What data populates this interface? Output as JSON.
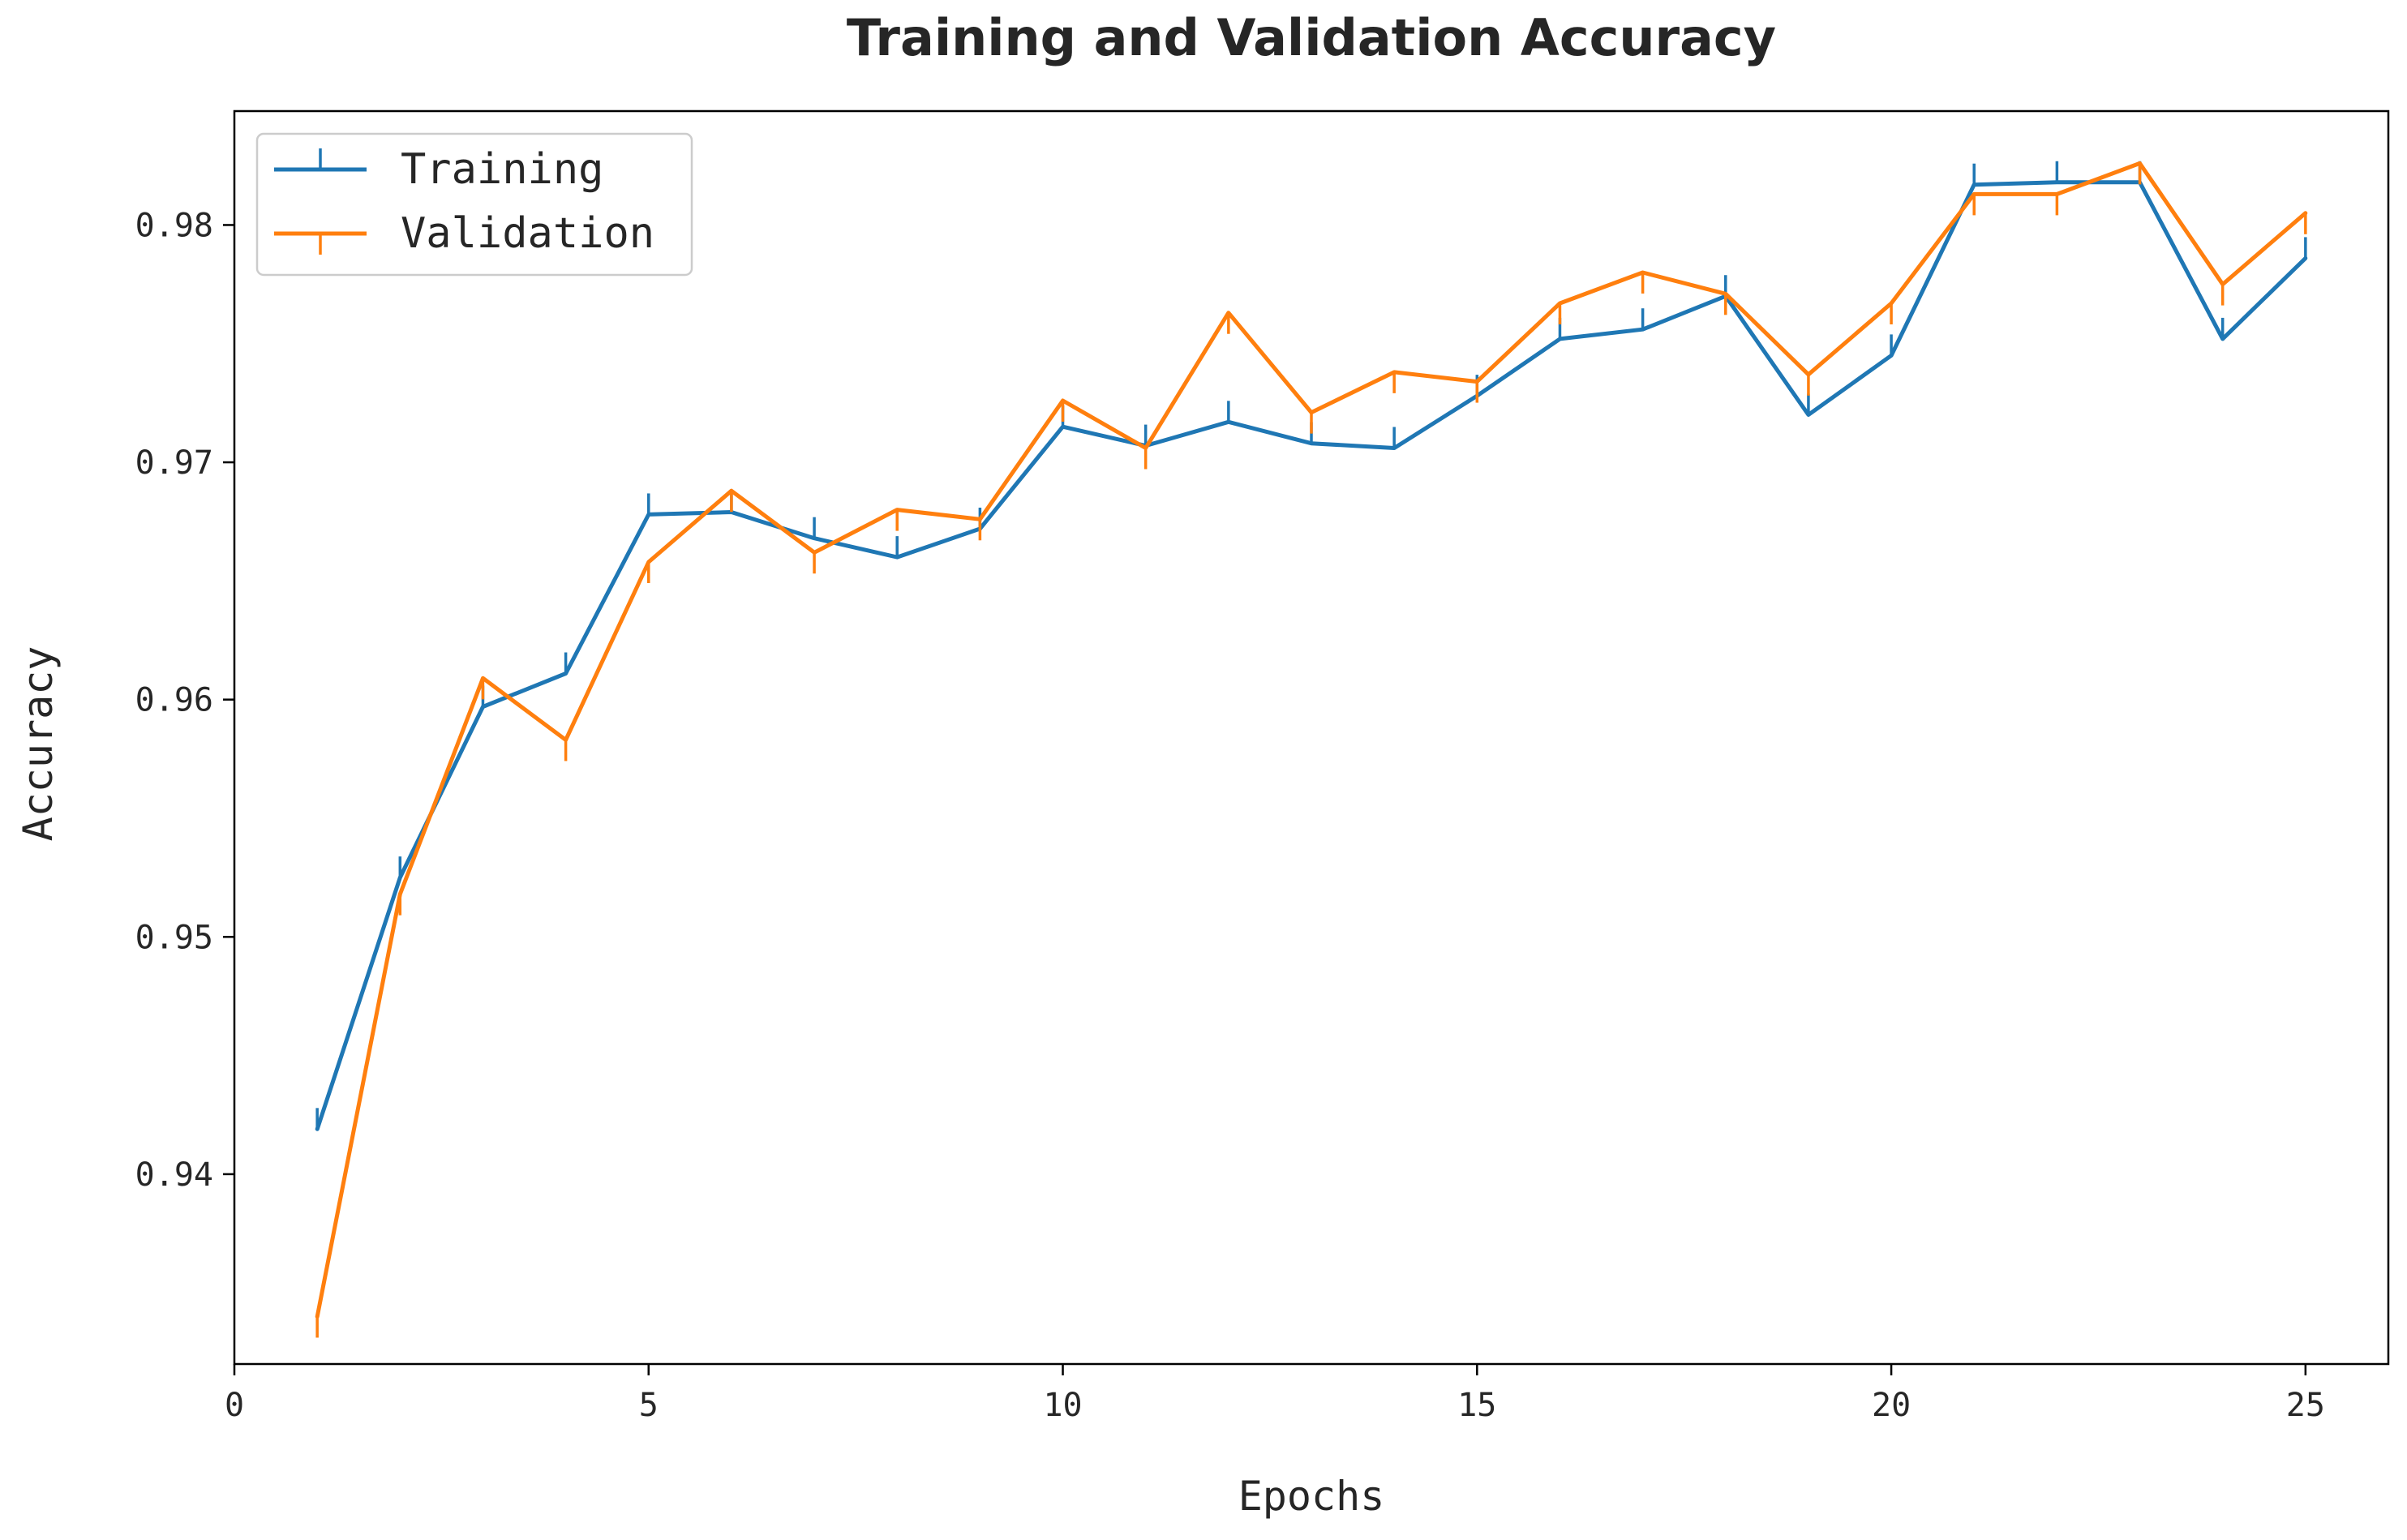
{
  "chart_data": {
    "type": "line",
    "title": "Training and Validation Accuracy",
    "xlabel": "Epochs",
    "ylabel": "Accuracy",
    "xlim": [
      0,
      26
    ],
    "ylim": [
      0.932,
      0.9848
    ],
    "xticks": [
      0,
      5,
      10,
      15,
      20,
      25
    ],
    "yticks": [
      0.94,
      0.95,
      0.96,
      0.97,
      0.98
    ],
    "grid": false,
    "legend_position": "top-left",
    "x": [
      1,
      2,
      3,
      4,
      5,
      6,
      7,
      8,
      9,
      10,
      11,
      12,
      13,
      14,
      15,
      16,
      17,
      18,
      19,
      20,
      21,
      22,
      23,
      24,
      25
    ],
    "series": [
      {
        "name": "Training",
        "color": "#1f77b4",
        "marker": "tick-up",
        "values": [
          0.9419,
          0.9525,
          0.9597,
          0.9611,
          0.9678,
          0.9679,
          0.9668,
          0.966,
          0.9672,
          0.9715,
          0.9707,
          0.9717,
          0.9708,
          0.9706,
          0.9728,
          0.9752,
          0.9756,
          0.977,
          0.972,
          0.9745,
          0.9817,
          0.9818,
          0.9818,
          0.9752,
          0.9786
        ]
      },
      {
        "name": "Validation",
        "color": "#ff7f0e",
        "marker": "tick-down",
        "values": [
          0.934,
          0.9518,
          0.9609,
          0.9583,
          0.9658,
          0.9688,
          0.9662,
          0.968,
          0.9676,
          0.9726,
          0.9706,
          0.9763,
          0.9721,
          0.9738,
          0.9734,
          0.9767,
          0.978,
          0.9771,
          0.9737,
          0.9767,
          0.9813,
          0.9813,
          0.9826,
          0.9775,
          0.9805
        ]
      }
    ]
  }
}
